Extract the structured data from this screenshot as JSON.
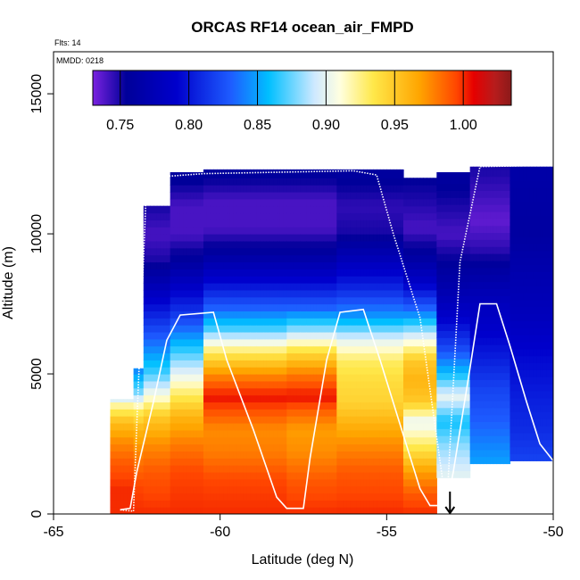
{
  "chart_data": {
    "type": "heatmap",
    "title": "ORCAS RF14 ocean_air_FMPD",
    "subtitle_flights": "Flts: 14",
    "subtitle_date": "MMDD: 0218",
    "xlabel": "Latitude (deg N)",
    "ylabel": "Altitude (m)",
    "xlim": [
      -65,
      -50
    ],
    "ylim": [
      0,
      16500
    ],
    "x_ticks": [
      -65,
      -60,
      -55,
      -50
    ],
    "x_tick_labels": [
      "-65",
      "-60",
      "-55",
      "-50"
    ],
    "y_ticks": [
      0,
      5000,
      10000,
      15000
    ],
    "y_tick_labels": [
      "0",
      "5000",
      "10000",
      "15000"
    ],
    "colorbar": {
      "range": [
        0.73,
        1.035
      ],
      "ticks": [
        0.75,
        0.8,
        0.85,
        0.9,
        0.95,
        1.0
      ],
      "tick_labels": [
        "0.75",
        "0.80",
        "0.85",
        "0.90",
        "0.95",
        "1.00"
      ],
      "colors": [
        "#7a22e0",
        "#000099",
        "#0000cc",
        "#1e5cff",
        "#00bfff",
        "#cfe9ff",
        "#ffffe0",
        "#ffe84a",
        "#ffa500",
        "#ff4500",
        "#e60000",
        "#b71c1c",
        "#8b1a1a"
      ],
      "stops": [
        0.0,
        0.08,
        0.2,
        0.33,
        0.42,
        0.53,
        0.59,
        0.67,
        0.78,
        0.87,
        0.91,
        0.96,
        1.0
      ]
    },
    "columns": [
      {
        "x0": -63.3,
        "x1": -62.6,
        "top": 4100,
        "prof": [
          [
            0,
            1.0
          ],
          [
            900,
            1.0
          ],
          [
            1800,
            0.99
          ],
          [
            2600,
            0.975
          ],
          [
            3300,
            0.955
          ],
          [
            3900,
            0.92
          ],
          [
            4100,
            0.89
          ]
        ]
      },
      {
        "x0": -62.6,
        "x1": -62.3,
        "top": 5200,
        "prof": [
          [
            0,
            1.0
          ],
          [
            1000,
            0.995
          ],
          [
            2000,
            0.98
          ],
          [
            3000,
            0.96
          ],
          [
            3700,
            0.93
          ],
          [
            4300,
            0.88
          ],
          [
            5200,
            0.84
          ]
        ]
      },
      {
        "x0": -62.3,
        "x1": -61.5,
        "top": 11000,
        "prof": [
          [
            0,
            1.0
          ],
          [
            1500,
            0.99
          ],
          [
            2500,
            0.975
          ],
          [
            3500,
            0.95
          ],
          [
            4200,
            0.91
          ],
          [
            5000,
            0.87
          ],
          [
            6000,
            0.84
          ],
          [
            7000,
            0.81
          ],
          [
            8000,
            0.78
          ],
          [
            9000,
            0.75
          ],
          [
            10000,
            0.74
          ],
          [
            11000,
            0.75
          ]
        ]
      },
      {
        "x0": -61.5,
        "x1": -60.5,
        "top": 12200,
        "prof": [
          [
            0,
            1.0
          ],
          [
            1500,
            0.995
          ],
          [
            2500,
            0.98
          ],
          [
            3500,
            0.96
          ],
          [
            4300,
            0.93
          ],
          [
            5000,
            0.9
          ],
          [
            6000,
            0.86
          ],
          [
            7000,
            0.82
          ],
          [
            8000,
            0.79
          ],
          [
            9000,
            0.76
          ],
          [
            10000,
            0.74
          ],
          [
            11000,
            0.74
          ],
          [
            12200,
            0.76
          ]
        ]
      },
      {
        "x0": -60.5,
        "x1": -58.0,
        "top": 12300,
        "prof": [
          [
            0,
            1.0
          ],
          [
            1200,
            0.995
          ],
          [
            2200,
            0.98
          ],
          [
            3000,
            0.975
          ],
          [
            3600,
            0.99
          ],
          [
            4200,
            1.005
          ],
          [
            5000,
            0.975
          ],
          [
            5800,
            0.93
          ],
          [
            6600,
            0.87
          ],
          [
            7400,
            0.83
          ],
          [
            8400,
            0.79
          ],
          [
            9300,
            0.76
          ],
          [
            10200,
            0.74
          ],
          [
            11200,
            0.74
          ],
          [
            12300,
            0.76
          ]
        ]
      },
      {
        "x0": -58.0,
        "x1": -56.5,
        "top": 12300,
        "prof": [
          [
            0,
            1.0
          ],
          [
            1200,
            0.99
          ],
          [
            2200,
            0.975
          ],
          [
            3000,
            0.97
          ],
          [
            3600,
            0.985
          ],
          [
            4200,
            1.005
          ],
          [
            5000,
            0.98
          ],
          [
            5800,
            0.94
          ],
          [
            6600,
            0.88
          ],
          [
            7400,
            0.83
          ],
          [
            8400,
            0.79
          ],
          [
            9300,
            0.76
          ],
          [
            10200,
            0.74
          ],
          [
            11200,
            0.74
          ],
          [
            12300,
            0.76
          ]
        ]
      },
      {
        "x0": -56.5,
        "x1": -54.5,
        "top": 12300,
        "prof": [
          [
            0,
            1.0
          ],
          [
            1500,
            0.99
          ],
          [
            2500,
            0.975
          ],
          [
            3300,
            0.96
          ],
          [
            4000,
            0.945
          ],
          [
            4800,
            0.94
          ],
          [
            5500,
            0.93
          ],
          [
            6200,
            0.9
          ],
          [
            7000,
            0.85
          ],
          [
            8000,
            0.81
          ],
          [
            9000,
            0.78
          ],
          [
            10000,
            0.75
          ],
          [
            11000,
            0.745
          ],
          [
            12300,
            0.76
          ]
        ]
      },
      {
        "x0": -54.5,
        "x1": -53.5,
        "top": 12000,
        "prof": [
          [
            0,
            1.0
          ],
          [
            700,
            0.99
          ],
          [
            1500,
            0.97
          ],
          [
            2500,
            0.93
          ],
          [
            3300,
            0.9
          ],
          [
            4000,
            0.95
          ],
          [
            4800,
            0.96
          ],
          [
            5500,
            0.95
          ],
          [
            6300,
            0.9
          ],
          [
            7200,
            0.84
          ],
          [
            8200,
            0.79
          ],
          [
            9200,
            0.76
          ],
          [
            10200,
            0.74
          ],
          [
            12000,
            0.755
          ]
        ]
      },
      {
        "x0": -53.5,
        "x1": -52.5,
        "top": 12200,
        "prof": [
          [
            1300,
            0.9
          ],
          [
            2500,
            0.88
          ],
          [
            3300,
            0.86
          ],
          [
            4200,
            0.9
          ],
          [
            5000,
            0.86
          ],
          [
            6000,
            0.82
          ],
          [
            7000,
            0.79
          ],
          [
            8000,
            0.77
          ],
          [
            9000,
            0.755
          ],
          [
            10000,
            0.74
          ],
          [
            12200,
            0.76
          ]
        ]
      },
      {
        "x0": -52.5,
        "x1": -51.3,
        "top": 12400,
        "prof": [
          [
            1800,
            0.85
          ],
          [
            2600,
            0.84
          ],
          [
            3400,
            0.83
          ],
          [
            4500,
            0.82
          ],
          [
            5500,
            0.805
          ],
          [
            6500,
            0.79
          ],
          [
            7500,
            0.78
          ],
          [
            8500,
            0.765
          ],
          [
            9500,
            0.745
          ],
          [
            10500,
            0.735
          ],
          [
            12400,
            0.75
          ]
        ]
      },
      {
        "x0": -51.3,
        "x1": -50.0,
        "top": 12400,
        "prof": [
          [
            1900,
            0.82
          ],
          [
            3000,
            0.81
          ],
          [
            4000,
            0.805
          ],
          [
            5500,
            0.795
          ],
          [
            7000,
            0.78
          ],
          [
            8500,
            0.77
          ],
          [
            10000,
            0.76
          ],
          [
            12400,
            0.765
          ]
        ]
      }
    ],
    "bottom_bounds": [
      [
        -63.3,
        0
      ],
      [
        -62.3,
        0
      ],
      [
        -58.0,
        0
      ],
      [
        -57.8,
        300
      ],
      [
        -54.5,
        300
      ],
      [
        -53.5,
        700
      ],
      [
        -53.5,
        1300
      ],
      [
        -52.5,
        1300
      ],
      [
        -52.5,
        1800
      ],
      [
        -51.3,
        1800
      ],
      [
        -51.3,
        1900
      ],
      [
        -50.0,
        1900
      ]
    ],
    "flight_track": {
      "color": "#ffffff",
      "points": [
        [
          -63.0,
          150
        ],
        [
          -62.6,
          100
        ],
        [
          -62.5,
          3200
        ],
        [
          -62.2,
          12000
        ],
        [
          -60.5,
          12150
        ],
        [
          -56,
          12250
        ],
        [
          -55.3,
          12100
        ],
        [
          -54.8,
          10000
        ],
        [
          -54.0,
          7000
        ],
        [
          -53.2,
          200
        ],
        [
          -52.8,
          9000
        ],
        [
          -52.2,
          12400
        ],
        [
          -50.0,
          12450
        ]
      ],
      "legs": [
        [
          [
            -63.0,
            150
          ],
          [
            -62.7,
            200
          ],
          [
            -62.5,
            1500
          ],
          [
            -62.0,
            4000
          ],
          [
            -61.6,
            6200
          ],
          [
            -61.2,
            7100
          ],
          [
            -60.2,
            7200
          ],
          [
            -59.8,
            5500
          ],
          [
            -59.0,
            3000
          ],
          [
            -58.3,
            600
          ],
          [
            -58.0,
            200
          ],
          [
            -57.5,
            200
          ],
          [
            -57.3,
            2000
          ],
          [
            -56.8,
            5500
          ],
          [
            -56.4,
            7200
          ],
          [
            -55.7,
            7300
          ],
          [
            -55.2,
            5500
          ],
          [
            -54.6,
            3200
          ],
          [
            -54.0,
            900
          ],
          [
            -53.7,
            300
          ],
          [
            -53.2,
            300
          ]
        ],
        [
          [
            -53.2,
            300
          ],
          [
            -53.0,
            1500
          ],
          [
            -52.5,
            5200
          ],
          [
            -52.2,
            7500
          ],
          [
            -51.7,
            7500
          ],
          [
            -51.3,
            6000
          ],
          [
            -50.8,
            4000
          ],
          [
            -50.4,
            2500
          ],
          [
            -50.0,
            1900
          ]
        ]
      ]
    },
    "arrow_marker": {
      "lat": -53.1,
      "alt": 800
    }
  }
}
